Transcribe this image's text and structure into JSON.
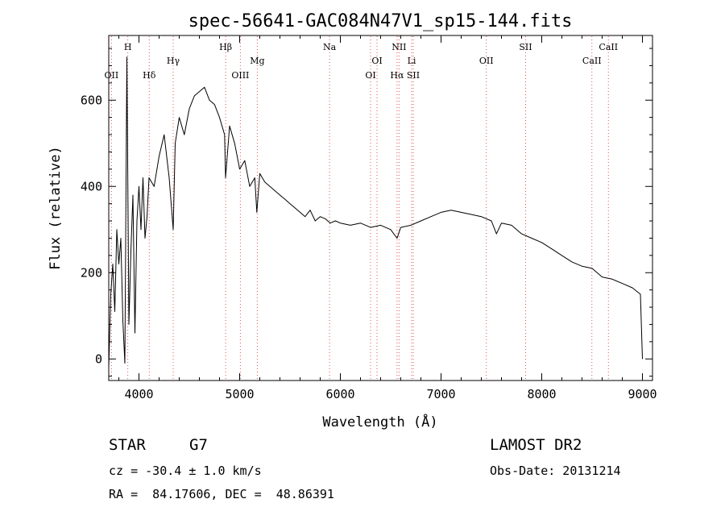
{
  "chart_data": {
    "type": "line",
    "title": "spec-56641-GAC084N47V1_sp15-144.fits",
    "xlabel": "Wavelength (Å)",
    "ylabel": "Flux (relative)",
    "xlim": [
      3700,
      9100
    ],
    "ylim": [
      -50,
      750
    ],
    "xticks": [
      4000,
      5000,
      6000,
      7000,
      8000,
      9000
    ],
    "yticks": [
      0,
      200,
      400,
      600
    ],
    "series": [
      {
        "color": "#000000",
        "x": [
          3700,
          3720,
          3740,
          3760,
          3780,
          3800,
          3820,
          3840,
          3860,
          3880,
          3900,
          3920,
          3940,
          3960,
          3980,
          4000,
          4020,
          4040,
          4060,
          4080,
          4100,
          4150,
          4200,
          4250,
          4300,
          4340,
          4360,
          4400,
          4450,
          4500,
          4550,
          4600,
          4650,
          4700,
          4750,
          4800,
          4850,
          4860,
          4900,
          4950,
          5000,
          5050,
          5100,
          5150,
          5170,
          5200,
          5250,
          5300,
          5350,
          5400,
          5450,
          5500,
          5550,
          5600,
          5650,
          5700,
          5750,
          5800,
          5850,
          5900,
          5950,
          6000,
          6100,
          6200,
          6300,
          6400,
          6500,
          6563,
          6600,
          6700,
          6800,
          6900,
          7000,
          7100,
          7200,
          7300,
          7400,
          7500,
          7550,
          7600,
          7700,
          7800,
          7900,
          8000,
          8100,
          8200,
          8300,
          8400,
          8500,
          8600,
          8700,
          8800,
          8900,
          8980,
          9000
        ],
        "values": [
          -20,
          150,
          220,
          110,
          300,
          220,
          280,
          90,
          -10,
          700,
          80,
          250,
          380,
          60,
          320,
          400,
          300,
          420,
          280,
          330,
          420,
          400,
          470,
          520,
          420,
          300,
          500,
          560,
          520,
          580,
          610,
          620,
          630,
          600,
          590,
          560,
          520,
          420,
          540,
          500,
          440,
          460,
          400,
          420,
          340,
          430,
          410,
          400,
          390,
          380,
          370,
          360,
          350,
          340,
          330,
          345,
          320,
          330,
          325,
          315,
          320,
          315,
          310,
          315,
          305,
          310,
          300,
          280,
          305,
          310,
          320,
          330,
          340,
          345,
          340,
          335,
          330,
          320,
          290,
          315,
          310,
          290,
          280,
          270,
          255,
          240,
          225,
          215,
          210,
          190,
          185,
          175,
          165,
          150,
          0
        ]
      }
    ],
    "lines_top": [
      {
        "label": "H",
        "x": 3889
      },
      {
        "label": "Hβ",
        "x": 4861
      },
      {
        "label": "Na",
        "x": 5893
      },
      {
        "label": "NII",
        "x": 6583
      },
      {
        "label": "SII",
        "x": 7840
      },
      {
        "label": "CaII",
        "x": 8662
      }
    ],
    "lines_mid": [
      {
        "label": "Hγ",
        "x": 4340
      },
      {
        "label": "Mg",
        "x": 5175
      },
      {
        "label": "OI",
        "x": 6364
      },
      {
        "label": "Li",
        "x": 6708
      },
      {
        "label": "OII",
        "x": 7450
      },
      {
        "label": "CaII",
        "x": 8498
      }
    ],
    "lines_low": [
      {
        "label": "OII",
        "x": 3727
      },
      {
        "label": "Hδ",
        "x": 4102
      },
      {
        "label": "OIII",
        "x": 5007
      },
      {
        "label": "OI",
        "x": 6300
      },
      {
        "label": "Hα",
        "x": 6563
      },
      {
        "label": "SII",
        "x": 6724
      }
    ]
  },
  "info": {
    "obj_type": "STAR",
    "obj_class": "G7",
    "survey": "LAMOST DR2",
    "redshift": "cz = -30.4 ± 1.0 km/s",
    "obs_date": "Obs-Date: 20131214",
    "coords": "RA =  84.17606, DEC =  48.86391"
  }
}
